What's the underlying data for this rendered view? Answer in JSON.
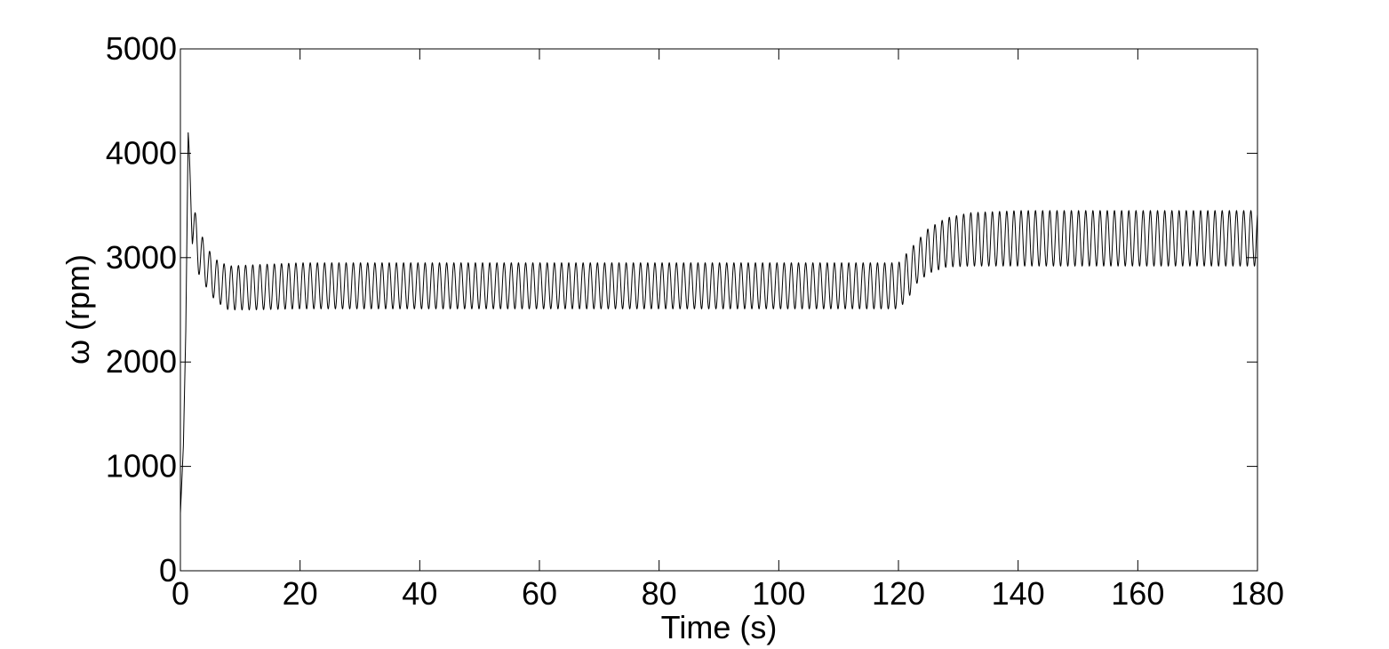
{
  "chart_data": {
    "type": "line",
    "title": "",
    "xlabel": "Time (s)",
    "ylabel": "ω (rpm)",
    "xlim": [
      0,
      180
    ],
    "ylim": [
      0,
      5000
    ],
    "xticks": [
      0,
      20,
      40,
      60,
      80,
      100,
      120,
      140,
      160,
      180
    ],
    "yticks": [
      0,
      1000,
      2000,
      3000,
      4000,
      5000
    ],
    "xtick_labels": [
      "0",
      "20",
      "40",
      "60",
      "80",
      "100",
      "120",
      "140",
      "160",
      "180"
    ],
    "ytick_labels": [
      "0",
      "1000",
      "2000",
      "3000",
      "4000",
      "5000"
    ],
    "grid": false,
    "line_color": "#000000",
    "series": [
      {
        "description_of_oscillation": "continuous oscillation with period about 1.2 s",
        "oscillation_period_s": 1.2,
        "envelope": [
          {
            "t": 0,
            "low": 550,
            "high": 550
          },
          {
            "t": 0.5,
            "low": 1200,
            "high": 1200
          },
          {
            "t": 0.9,
            "low": 2300,
            "high": 2300
          },
          {
            "t": 1.3,
            "low": 4200,
            "high": 4200
          },
          {
            "t": 2.0,
            "low": 3100,
            "high": 3550
          },
          {
            "t": 3.0,
            "low": 2850,
            "high": 3300
          },
          {
            "t": 4.0,
            "low": 2750,
            "high": 3150
          },
          {
            "t": 5.0,
            "low": 2650,
            "high": 3050
          },
          {
            "t": 6.0,
            "low": 2580,
            "high": 2980
          },
          {
            "t": 8.0,
            "low": 2500,
            "high": 2920
          },
          {
            "t": 12.0,
            "low": 2500,
            "high": 2930
          },
          {
            "t": 20.0,
            "low": 2510,
            "high": 2950
          },
          {
            "t": 120.0,
            "low": 2510,
            "high": 2950
          },
          {
            "t": 121.5,
            "low": 2600,
            "high": 3050
          },
          {
            "t": 123.0,
            "low": 2750,
            "high": 3150
          },
          {
            "t": 125.0,
            "low": 2850,
            "high": 3280
          },
          {
            "t": 128.0,
            "low": 2910,
            "high": 3380
          },
          {
            "t": 132.0,
            "low": 2920,
            "high": 3430
          },
          {
            "t": 140.0,
            "low": 2920,
            "high": 3450
          },
          {
            "t": 180.0,
            "low": 2920,
            "high": 3450
          }
        ]
      }
    ]
  }
}
